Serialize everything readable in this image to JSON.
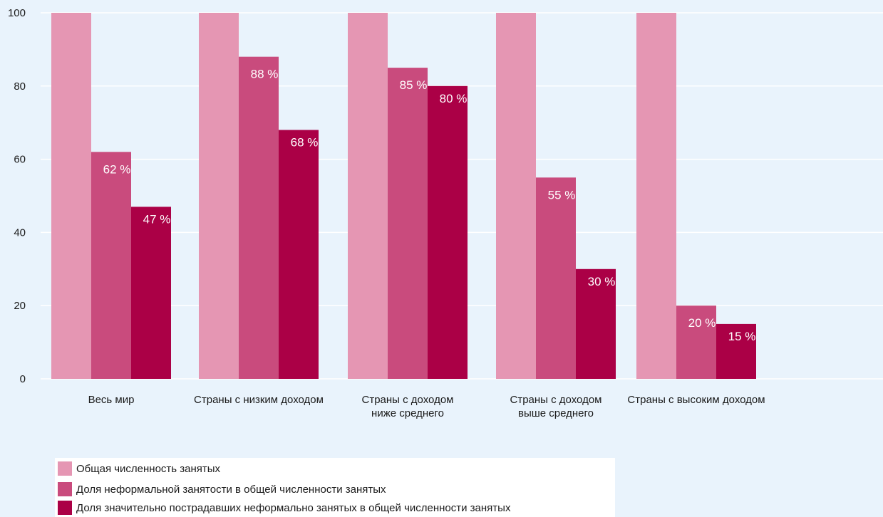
{
  "chart_data": {
    "type": "bar",
    "categories": [
      [
        "Весь мир"
      ],
      [
        "Страны с низким доходом"
      ],
      [
        "Страны с доходом",
        "ниже среднего"
      ],
      [
        "Страны с доходом",
        "выше среднего"
      ],
      [
        "Страны с высоким доходом"
      ]
    ],
    "series": [
      {
        "name": "Общая численность занятых",
        "values": [
          100,
          100,
          100,
          100,
          100
        ],
        "labels": [
          "",
          "",
          "",
          "",
          ""
        ],
        "color": "#e596b3"
      },
      {
        "name": "Доля неформальной занятости в общей численности занятых",
        "values": [
          62,
          88,
          85,
          55,
          20
        ],
        "labels": [
          "62 %",
          "88 %",
          "85 %",
          "55 %",
          "20 %"
        ],
        "color": "#c94b7d"
      },
      {
        "name": "Доля значительно пострадавших неформально занятых в общей численности занятых",
        "values": [
          47,
          68,
          80,
          30,
          15
        ],
        "labels": [
          "47 %",
          "68 %",
          "80 %",
          "30 %",
          "15 %"
        ],
        "color": "#ab0046"
      }
    ],
    "yticks": [
      "0",
      "20",
      "40",
      "60",
      "80",
      "100"
    ],
    "ylim": [
      0,
      100
    ],
    "grid": true,
    "legend_position": "bottom-left",
    "background": "#e9f3fc",
    "grid_color": "#ffffff"
  }
}
